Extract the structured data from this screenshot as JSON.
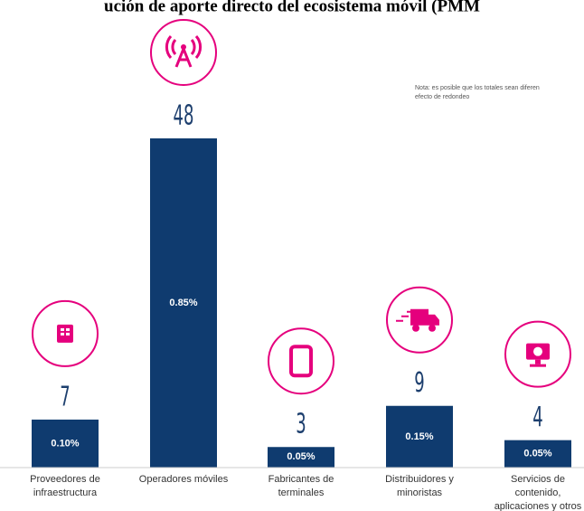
{
  "chart_data": {
    "type": "bar",
    "title": "ución de aporte directo del ecosistema móvil (PMM",
    "note": [
      "Nota: es posible que los totales sean diferen",
      "efecto de redondeo"
    ],
    "categories": [
      [
        "Proveedores de",
        "infraestructura"
      ],
      [
        "Operadores móviles"
      ],
      [
        "Fabricantes de",
        "terminales"
      ],
      [
        "Distribuidores y",
        "minoristas"
      ],
      [
        "Servicios de",
        "contenido,",
        "aplicaciones y otros"
      ]
    ],
    "values": [
      7,
      48,
      3,
      9,
      4
    ],
    "share_labels": [
      "0.10%",
      "0.85%",
      "0.05%",
      "0.15%",
      "0.05%"
    ],
    "color": "#0f3b6f",
    "icon_color": "#e5007d"
  }
}
